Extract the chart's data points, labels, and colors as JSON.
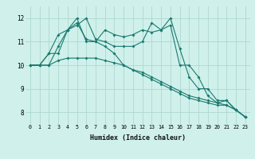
{
  "xlabel": "Humidex (Indice chaleur)",
  "bg_color": "#cff0eb",
  "grid_color": "#aed8d0",
  "line_color": "#1a7a6e",
  "xlim": [
    -0.5,
    23.5
  ],
  "ylim": [
    7.5,
    12.5
  ],
  "yticks": [
    8,
    9,
    10,
    11,
    12
  ],
  "xticks": [
    0,
    1,
    2,
    3,
    4,
    5,
    6,
    7,
    8,
    9,
    10,
    11,
    12,
    13,
    14,
    15,
    16,
    17,
    18,
    19,
    20,
    21,
    22,
    23
  ],
  "series": [
    [
      10.0,
      10.0,
      10.0,
      10.2,
      10.3,
      10.3,
      10.3,
      10.3,
      10.2,
      10.1,
      10.0,
      9.8,
      9.7,
      9.5,
      9.3,
      9.1,
      8.9,
      8.7,
      8.6,
      8.5,
      8.4,
      8.3,
      8.1,
      7.8
    ],
    [
      10.0,
      10.0,
      10.5,
      11.3,
      11.5,
      11.8,
      11.1,
      11.0,
      10.8,
      10.5,
      10.0,
      9.8,
      9.6,
      9.4,
      9.2,
      9.0,
      8.8,
      8.6,
      8.5,
      8.4,
      8.3,
      8.3,
      8.1,
      7.8
    ],
    [
      10.0,
      10.0,
      10.5,
      10.5,
      11.5,
      12.0,
      11.0,
      11.0,
      11.5,
      11.3,
      11.2,
      11.3,
      11.5,
      11.4,
      11.5,
      11.7,
      10.0,
      10.0,
      9.5,
      8.7,
      8.4,
      8.5,
      8.1,
      7.8
    ],
    [
      10.0,
      10.0,
      10.0,
      10.8,
      11.5,
      11.7,
      12.0,
      11.1,
      11.0,
      10.8,
      10.8,
      10.8,
      11.0,
      11.8,
      11.5,
      12.0,
      10.7,
      9.5,
      9.0,
      9.0,
      8.5,
      8.5,
      8.1,
      7.8
    ]
  ]
}
